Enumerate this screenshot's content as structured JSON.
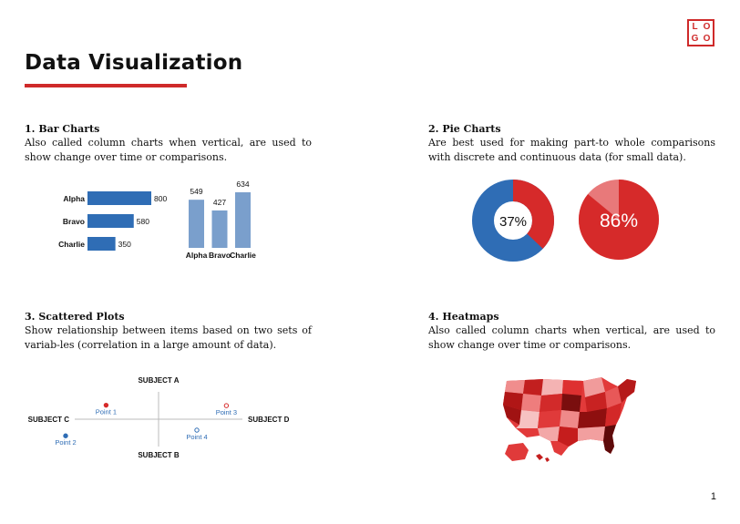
{
  "logo": {
    "letters": [
      "L",
      "O",
      "G",
      "O"
    ]
  },
  "page": {
    "title": "Data Visualization",
    "number": "1"
  },
  "colors": {
    "accent": "#cf2a2a",
    "bar_blue": "#2f6db5",
    "bar_light": "#7a9fcc",
    "pie_blue": "#2f6db5",
    "pie_red": "#d62a2a",
    "pie_light": "#e8797a"
  },
  "sections": {
    "bar": {
      "title": "1. Bar Charts",
      "desc": "Also called column charts when vertical, are used to show change over time or comparisons."
    },
    "pie": {
      "title": "2. Pie Charts",
      "desc": "Are best used for making part-to whole comparisons with discrete and continuous data (for small data)."
    },
    "scatter": {
      "title": "3. Scattered Plots",
      "desc": "Show relationship between items based on two sets of variab-les (correlation in a large amount of data)."
    },
    "heatmap": {
      "title": "4. Heatmaps",
      "desc": "Also called column charts when vertical, are used to show change over time or comparisons."
    }
  },
  "chart_data": [
    {
      "type": "bar",
      "orientation": "horizontal",
      "categories": [
        "Alpha",
        "Bravo",
        "Charlie"
      ],
      "values": [
        800,
        580,
        350
      ],
      "xlim": [
        0,
        800
      ]
    },
    {
      "type": "bar",
      "orientation": "vertical",
      "categories": [
        "Alpha",
        "Bravo",
        "Charlie"
      ],
      "values": [
        549,
        427,
        634
      ],
      "ylim": [
        0,
        634
      ]
    },
    {
      "type": "pie",
      "style": "donut",
      "values": [
        37,
        63
      ],
      "center_label": "37%"
    },
    {
      "type": "pie",
      "values": [
        86,
        14
      ],
      "center_label": "86%"
    },
    {
      "type": "scatter",
      "axis_labels": {
        "top": "SUBJECT A",
        "bottom": "SUBJECT B",
        "left": "SUBJECT C",
        "right": "SUBJECT D"
      },
      "xlim": [
        -1,
        1
      ],
      "ylim": [
        -1,
        1
      ],
      "points": [
        {
          "label": "Point 1",
          "x": -0.48,
          "y": 0.32,
          "style": "filled-red"
        },
        {
          "label": "Point 2",
          "x": -0.85,
          "y": -0.38,
          "style": "filled-blue"
        },
        {
          "label": "Point 3",
          "x": 0.62,
          "y": 0.31,
          "style": "hollow-red"
        },
        {
          "label": "Point 4",
          "x": 0.35,
          "y": -0.25,
          "style": "hollow-blue"
        }
      ]
    }
  ]
}
